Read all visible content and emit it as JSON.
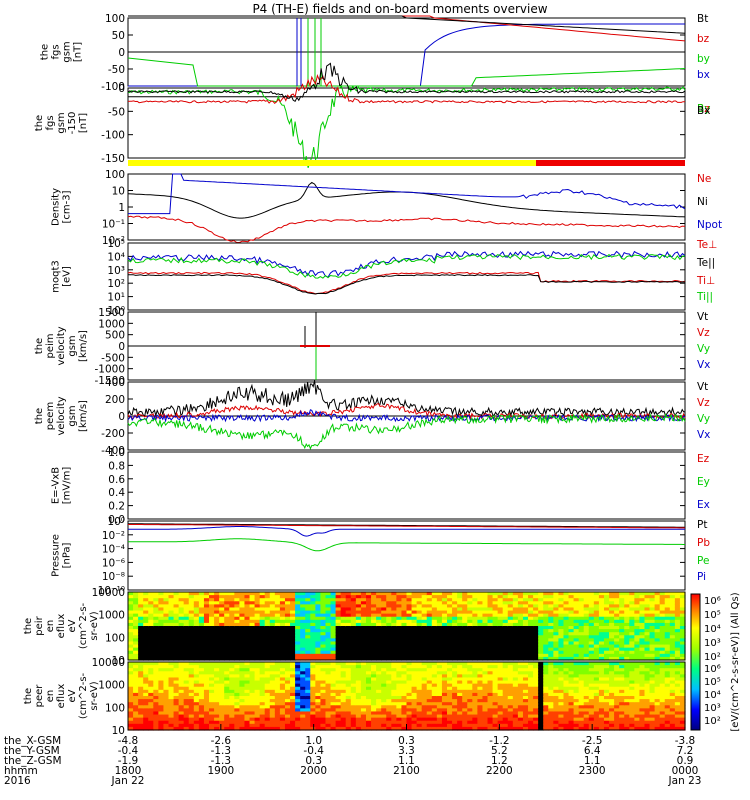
{
  "title": "P4 (TH-E) fields and on-board moments overview",
  "colors": {
    "black": "#000000",
    "red": "#dd0000",
    "green": "#00cc00",
    "blue": "#0000cc",
    "yellow": "#ffff00",
    "redbar": "#ee0000"
  },
  "chart_data": [
    {
      "type": "line",
      "id": "fgs_gsm",
      "ylabel": [
        "the",
        "fgs",
        "gsm",
        "[nT]"
      ],
      "ylim": [
        -100,
        100
      ],
      "yticks": [
        "100",
        "50",
        "0",
        "-50",
        "-100"
      ],
      "series": [
        {
          "name": "Bt",
          "color": "black"
        },
        {
          "name": "bz",
          "color": "red"
        },
        {
          "name": "by",
          "color": "green"
        },
        {
          "name": "bx",
          "color": "blue"
        }
      ]
    },
    {
      "type": "line",
      "id": "fgs_gse",
      "ylabel": [
        "the",
        "fgs",
        "gsm",
        "-150",
        "[nT]"
      ],
      "ylim": [
        -175,
        25
      ],
      "yticks": [
        "0",
        "-50",
        "-100",
        "-150"
      ],
      "series": [
        {
          "name": "Bz",
          "color": "red"
        },
        {
          "name": "By",
          "color": "green"
        },
        {
          "name": "Bx",
          "color": "black"
        }
      ]
    },
    {
      "type": "line",
      "id": "density",
      "ylabel": [
        "Density",
        "[cm-3]"
      ],
      "scale": "log",
      "yticks": [
        "100",
        "10",
        "1",
        "10⁻¹",
        "10⁻²"
      ],
      "series": [
        {
          "name": "Ne",
          "color": "red"
        },
        {
          "name": "Ni",
          "color": "black"
        },
        {
          "name": "Npot",
          "color": "blue"
        }
      ]
    },
    {
      "type": "line",
      "id": "temperature",
      "ylabel": [
        "moqt3",
        "[eV]"
      ],
      "scale": "log",
      "yticks": [
        "10⁵",
        "10⁴",
        "10³",
        "10²",
        "10¹",
        "10⁰"
      ],
      "series": [
        {
          "name": "Te⊥",
          "color": "red"
        },
        {
          "name": "Te||",
          "color": "black"
        },
        {
          "name": "Ti⊥",
          "color": "red"
        },
        {
          "name": "Ti||",
          "color": "green"
        }
      ]
    },
    {
      "type": "line",
      "id": "peim_velocity",
      "ylabel": [
        "the",
        "peim",
        "velocity",
        "gsm",
        "[km/s]"
      ],
      "ylim": [
        -1500,
        1500
      ],
      "yticks": [
        "1500",
        "1000",
        "500",
        "0",
        "-500",
        "-1000",
        "-1500"
      ],
      "series": [
        {
          "name": "Vt",
          "color": "black"
        },
        {
          "name": "Vz",
          "color": "red"
        },
        {
          "name": "Vy",
          "color": "green"
        },
        {
          "name": "Vx",
          "color": "blue"
        }
      ]
    },
    {
      "type": "line",
      "id": "peem_velocity",
      "ylabel": [
        "the",
        "peem",
        "velocity",
        "gsm",
        "[km/s]"
      ],
      "ylim": [
        -400,
        400
      ],
      "yticks": [
        "400",
        "200",
        "0",
        "-200",
        "-400"
      ],
      "series": [
        {
          "name": "Vt",
          "color": "black"
        },
        {
          "name": "Vz",
          "color": "red"
        },
        {
          "name": "Vy",
          "color": "green"
        },
        {
          "name": "Vx",
          "color": "blue"
        }
      ]
    },
    {
      "type": "line",
      "id": "efield",
      "ylabel": [
        "E=-VxB",
        "[mV/m]"
      ],
      "ylim": [
        0,
        1
      ],
      "yticks": [
        "1.0",
        "0.8",
        "0.6",
        "0.4",
        "0.2",
        "0.0"
      ],
      "series": [
        {
          "name": "Ez",
          "color": "red"
        },
        {
          "name": "Ey",
          "color": "green"
        },
        {
          "name": "Ex",
          "color": "blue"
        }
      ]
    },
    {
      "type": "line",
      "id": "pressure",
      "ylabel": [
        "Pressure",
        "[nPa]"
      ],
      "scale": "log",
      "yticks": [
        "10⁰",
        "10⁻²",
        "10⁻⁴",
        "10⁻⁶",
        "10⁻⁸",
        "10⁻¹⁰"
      ],
      "series": [
        {
          "name": "Pt",
          "color": "black"
        },
        {
          "name": "Pb",
          "color": "red"
        },
        {
          "name": "Pe",
          "color": "green"
        },
        {
          "name": "Pi",
          "color": "blue"
        }
      ]
    },
    {
      "type": "heatmap",
      "id": "peir_spectrogram",
      "ylabel": [
        "the",
        "peir",
        "en",
        "eflux",
        "eV",
        "(cm^2-s-",
        "sr-eV)"
      ],
      "yticks": [
        "10000",
        "1000",
        "100",
        "10"
      ]
    },
    {
      "type": "heatmap",
      "id": "peer_spectrogram",
      "ylabel": [
        "the",
        "peer",
        "en",
        "eflux",
        "eV",
        "(cm^2-s-",
        "sr-eV)"
      ],
      "yticks": [
        "10000",
        "1000",
        "100",
        "10"
      ]
    }
  ],
  "colorbar": {
    "label": "[eV/(cm^2-s-sr-eV)] (All Qs)",
    "ticks_top": [
      "10⁶",
      "10⁵",
      "10⁴",
      "10³",
      "10²"
    ],
    "ticks_bottom": [
      "10⁶",
      "10⁵",
      "10⁴",
      "10³",
      "10²"
    ]
  },
  "xaxis": {
    "row_labels": [
      "the_X-GSM",
      "the_Y-GSM",
      "the_Z-GSM",
      "hhmm",
      "2016"
    ],
    "ticks": [
      {
        "x": "-4.8",
        "y": "-0.4",
        "z": "-1.9",
        "t": "1800",
        "d": "Jan 22"
      },
      {
        "x": "-2.6",
        "y": "-1.3",
        "z": "-1.3",
        "t": "1900",
        "d": ""
      },
      {
        "x": "1.0",
        "y": "-0.4",
        "z": "0.3",
        "t": "2000",
        "d": ""
      },
      {
        "x": "0.3",
        "y": "3.3",
        "z": "1.1",
        "t": "2100",
        "d": ""
      },
      {
        "x": "-1.2",
        "y": "5.2",
        "z": "1.2",
        "t": "2200",
        "d": ""
      },
      {
        "x": "-2.5",
        "y": "6.4",
        "z": "1.1",
        "t": "2300",
        "d": ""
      },
      {
        "x": "-3.8",
        "y": "7.2",
        "z": "0.9",
        "t": "0000",
        "d": "Jan 23"
      }
    ]
  }
}
